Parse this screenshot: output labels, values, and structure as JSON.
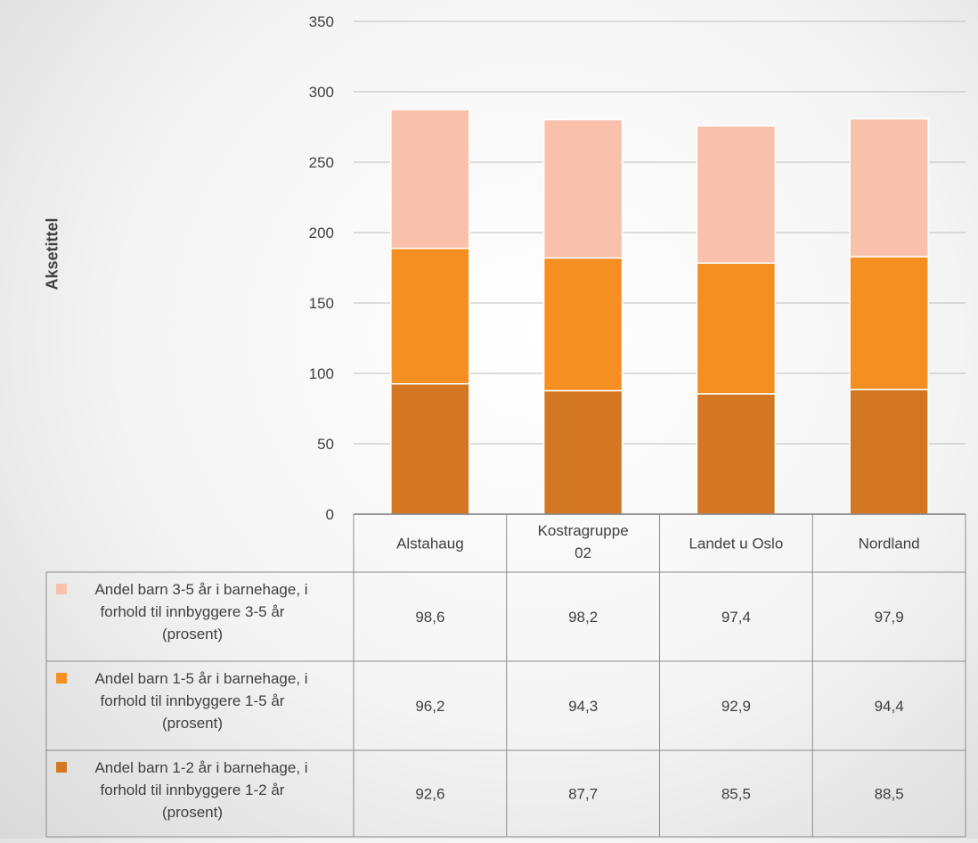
{
  "chart_data": {
    "type": "bar",
    "stacked": true,
    "ylabel": "Aksetittel",
    "ylim": [
      0,
      350
    ],
    "yticks": [
      0,
      50,
      100,
      150,
      200,
      250,
      300,
      350
    ],
    "grid": true,
    "categories": [
      "Alstahaug",
      [
        "Kostragruppe",
        "02"
      ],
      "Landet u Oslo",
      "Nordland"
    ],
    "category_names": [
      "Alstahaug",
      "Kostragruppe 02",
      "Landet u Oslo",
      "Nordland"
    ],
    "series": [
      {
        "name": "Andel barn 1-2 år i barnehage, i forhold til innbyggere 1-2 år (prosent)",
        "label_lines": [
          "Andel barn 1-2 år i barnehage, i",
          "forhold til innbyggere 1-2 år",
          "(prosent)"
        ],
        "color": "#d47722",
        "values": [
          92.6,
          87.7,
          85.5,
          88.5
        ],
        "labels": [
          "92,6",
          "87,7",
          "85,5",
          "88,5"
        ]
      },
      {
        "name": "Andel barn 1-5 år i barnehage, i forhold til innbyggere 1-5 år (prosent)",
        "label_lines": [
          "Andel barn 1-5 år i barnehage, i",
          "forhold til innbyggere 1-5 år",
          "(prosent)"
        ],
        "color": "#f58f21",
        "values": [
          96.2,
          94.3,
          92.9,
          94.4
        ],
        "labels": [
          "96,2",
          "94,3",
          "92,9",
          "94,4"
        ]
      },
      {
        "name": "Andel barn 3-5 år i barnehage, i forhold til innbyggere 3-5 år (prosent)",
        "label_lines": [
          "Andel barn 3-5 år i barnehage, i",
          "forhold til innbyggere 3-5 år",
          "(prosent)"
        ],
        "color": "#f9c1ab",
        "values": [
          98.6,
          98.2,
          97.4,
          97.9
        ],
        "labels": [
          "98,6",
          "98,2",
          "97,4",
          "97,9"
        ]
      }
    ],
    "legend": "data-table"
  }
}
